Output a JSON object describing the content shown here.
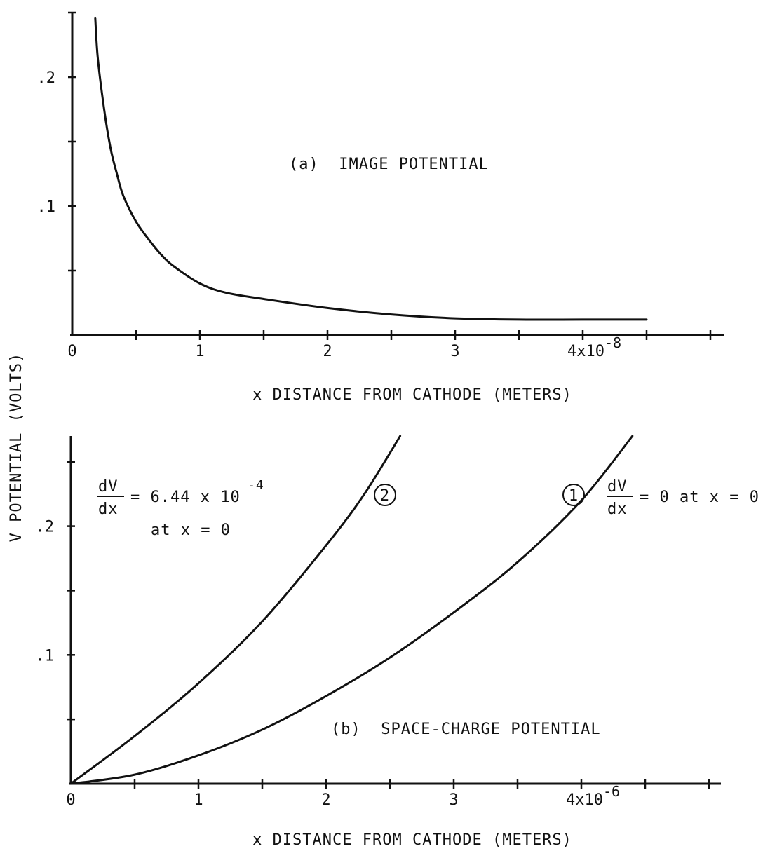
{
  "figure": {
    "ylabel": "V POTENTIAL (VOLTS)"
  },
  "chart_data": [
    {
      "type": "line",
      "title": "(a)  IMAGE POTENTIAL",
      "xlabel": "x DISTANCE FROM CATHODE (METERS)",
      "ylabel": "V POTENTIAL (VOLTS)",
      "xlim": [
        0,
        5.0
      ],
      "ylim": [
        0,
        0.25
      ],
      "x_unit_multiplier": "1e-8",
      "x_ticks": [
        0,
        0.5,
        1,
        1.5,
        2,
        2.5,
        3,
        3.5,
        4,
        4.5,
        5
      ],
      "x_tick_labels": [
        {
          "at": 0,
          "text": "0"
        },
        {
          "at": 1,
          "text": "1"
        },
        {
          "at": 2,
          "text": "2"
        },
        {
          "at": 3,
          "text": "3"
        },
        {
          "at": 4,
          "text": "4x10",
          "sup": "-8"
        }
      ],
      "y_ticks": [
        0,
        0.05,
        0.1,
        0.15,
        0.2,
        0.25
      ],
      "y_tick_labels": [
        {
          "at": 0.1,
          "text": ".1"
        },
        {
          "at": 0.2,
          "text": ".2"
        }
      ],
      "series": [
        {
          "x": [
            0.18,
            0.2,
            0.25,
            0.3,
            0.35,
            0.4,
            0.5,
            0.6,
            0.7,
            0.8,
            1.0,
            1.2,
            1.5,
            2.0,
            2.5,
            3.0,
            3.5,
            4.0,
            4.5
          ],
          "y": [
            0.246,
            0.215,
            0.175,
            0.145,
            0.125,
            0.108,
            0.088,
            0.074,
            0.062,
            0.053,
            0.04,
            0.033,
            0.028,
            0.021,
            0.016,
            0.013,
            0.012,
            0.012,
            0.012
          ]
        }
      ]
    },
    {
      "type": "line",
      "title": "(b)  SPACE-CHARGE POTENTIAL",
      "xlabel": "x DISTANCE FROM CATHODE (METERS)",
      "ylabel": "V POTENTIAL (VOLTS)",
      "xlim": [
        0,
        5.0
      ],
      "ylim": [
        0,
        0.27
      ],
      "x_unit_multiplier": "1e-6",
      "x_ticks": [
        0,
        0.5,
        1,
        1.5,
        2,
        2.5,
        3,
        3.5,
        4,
        4.5,
        5
      ],
      "x_tick_labels": [
        {
          "at": 0,
          "text": "0"
        },
        {
          "at": 1,
          "text": "1"
        },
        {
          "at": 2,
          "text": "2"
        },
        {
          "at": 3,
          "text": "3"
        },
        {
          "at": 4,
          "text": "4x10",
          "sup": "-6"
        }
      ],
      "y_ticks": [
        0,
        0.05,
        0.1,
        0.15,
        0.2,
        0.25
      ],
      "y_tick_labels": [
        {
          "at": 0.1,
          "text": ".1"
        },
        {
          "at": 0.2,
          "text": ".2"
        }
      ],
      "series": [
        {
          "name": "2",
          "x": [
            0,
            0.5,
            1.0,
            1.5,
            2.0,
            2.3,
            2.58
          ],
          "y": [
            0,
            0.037,
            0.078,
            0.126,
            0.185,
            0.225,
            0.27
          ]
        },
        {
          "name": "1",
          "x": [
            0,
            0.5,
            1.0,
            1.5,
            2.0,
            2.5,
            3.0,
            3.5,
            4.0,
            4.4
          ],
          "y": [
            0,
            0.007,
            0.022,
            0.042,
            0.068,
            0.098,
            0.133,
            0.172,
            0.22,
            0.27
          ]
        }
      ],
      "annotations": {
        "curve2_label": "2",
        "curve1_label": "1",
        "deriv_numer": "dV",
        "deriv_denom": "dx",
        "cond2_value": "= 6.44 x 10",
        "cond2_exp": "-4",
        "cond2_at": "at x = 0",
        "cond1_value": "= 0 at x = 0"
      }
    }
  ]
}
